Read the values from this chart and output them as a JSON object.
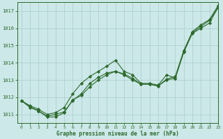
{
  "xlabel_label": "Graphe pression niveau de la mer (hPa)",
  "bg_color": "#cce8e8",
  "grid_color": "#aacccc",
  "line_color": "#2d6a2d",
  "xlim": [
    -0.5,
    23
  ],
  "ylim": [
    1010.5,
    1017.5
  ],
  "yticks": [
    1011,
    1012,
    1013,
    1014,
    1015,
    1016,
    1017
  ],
  "xticks": [
    0,
    1,
    2,
    3,
    4,
    5,
    6,
    7,
    8,
    9,
    10,
    11,
    12,
    13,
    14,
    15,
    16,
    17,
    18,
    19,
    20,
    21,
    22,
    23
  ],
  "line1_x": [
    0,
    1,
    2,
    3,
    4,
    5,
    6,
    7,
    8,
    9,
    10,
    11,
    12,
    13,
    14,
    15,
    16,
    17,
    18,
    19,
    20,
    21,
    22,
    23
  ],
  "line1_y": [
    1011.8,
    1011.5,
    1011.3,
    1011.0,
    1011.1,
    1011.4,
    1012.2,
    1012.8,
    1013.2,
    1013.5,
    1013.8,
    1014.15,
    1013.5,
    1013.3,
    1012.8,
    1012.8,
    1012.7,
    1013.3,
    1013.1,
    1014.7,
    1015.8,
    1016.2,
    1016.5,
    1017.3
  ],
  "line2_x": [
    0,
    1,
    2,
    3,
    4,
    5,
    6,
    7,
    8,
    9,
    10,
    11,
    12,
    13,
    14,
    15,
    16,
    17,
    18,
    19,
    20,
    21,
    22,
    23
  ],
  "line2_y": [
    1011.8,
    1011.45,
    1011.2,
    1010.9,
    1011.0,
    1011.15,
    1011.8,
    1012.2,
    1012.8,
    1013.15,
    1013.4,
    1013.5,
    1013.35,
    1013.1,
    1012.75,
    1012.75,
    1012.65,
    1013.05,
    1013.2,
    1014.7,
    1015.75,
    1016.1,
    1016.45,
    1017.2
  ],
  "line3_x": [
    0,
    1,
    2,
    3,
    4,
    5,
    6,
    7,
    8,
    9,
    10,
    11,
    12,
    13,
    14,
    15,
    16,
    17,
    18,
    19,
    20,
    21,
    22,
    23
  ],
  "line3_y": [
    1011.8,
    1011.4,
    1011.2,
    1010.85,
    1010.85,
    1011.1,
    1011.85,
    1012.1,
    1012.6,
    1013.0,
    1013.3,
    1013.5,
    1013.3,
    1013.0,
    1012.75,
    1012.75,
    1012.65,
    1013.0,
    1013.1,
    1014.6,
    1015.7,
    1016.0,
    1016.3,
    1017.2
  ]
}
